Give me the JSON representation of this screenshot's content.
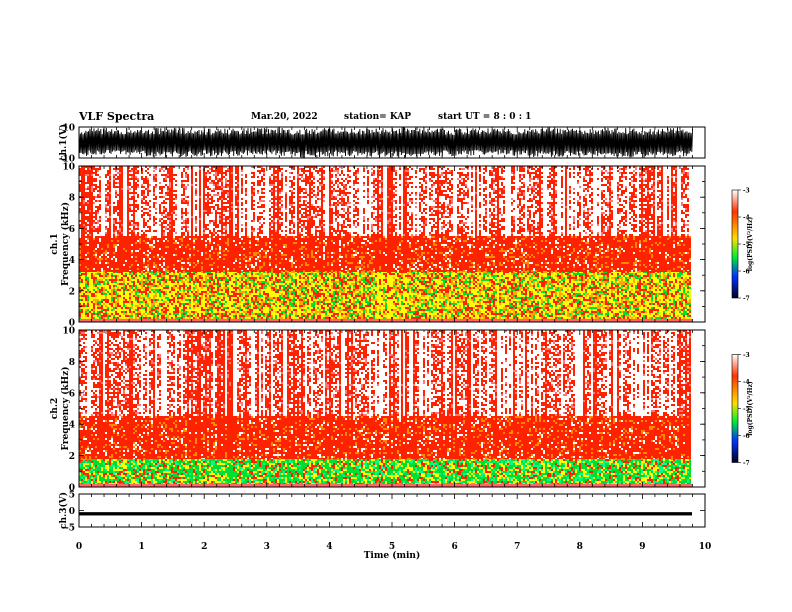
{
  "header": {
    "title": "VLF Spectra",
    "date": "Mar.20, 2022",
    "station": "station= KAP",
    "start": "start UT =  8 : 0 : 1"
  },
  "colors": {
    "spec_hi": "#ff2200",
    "spec_mid": "#ffff00",
    "spec_low": "#00dd33",
    "spec_floor": "#ffffff",
    "trace": "#000000"
  },
  "chart_data": [
    {
      "type": "line",
      "name": "ch1-waveform",
      "ylabel": "ch.1(V)",
      "ylim": [
        -10,
        10
      ],
      "yticks": [
        10,
        -10
      ],
      "xlim": [
        0,
        10
      ],
      "x": [
        0,
        0.5,
        1,
        1.5,
        2,
        2.5,
        3,
        3.5,
        4,
        4.5,
        5,
        5.5,
        6,
        6.5,
        7,
        7.5,
        8,
        8.5,
        9,
        9.5,
        9.8
      ],
      "envelope_upper": [
        9,
        10,
        9,
        10,
        9,
        9,
        10,
        9,
        10,
        9,
        10,
        10,
        9,
        10,
        9,
        10,
        9,
        10,
        9,
        10,
        9
      ],
      "envelope_lower": [
        -9,
        -8,
        -9,
        -10,
        -9,
        -9,
        -8,
        -10,
        -9,
        -9,
        -10,
        -9,
        -9,
        -8,
        -9,
        -10,
        -9,
        -9,
        -10,
        -9,
        -9
      ]
    },
    {
      "type": "heatmap",
      "name": "ch1-spectrogram",
      "ylabel": "ch.1 Frequency (kHz)",
      "ylim": [
        0,
        10
      ],
      "yticks": [
        0,
        2,
        4,
        6,
        8,
        10
      ],
      "xlim": [
        0,
        9.8
      ],
      "bands": [
        {
          "fmin": 0.2,
          "fmax": 3.3,
          "level": "mid"
        },
        {
          "fmin": 3.3,
          "fmax": 5.5,
          "level": "hi"
        },
        {
          "fmin": 5.5,
          "fmax": 10,
          "level": "mixed"
        }
      ],
      "colorbar": {
        "label": "log(PSD)(V²/Hz)",
        "range": [
          -7,
          -3
        ],
        "ticks": [
          -3,
          -4,
          -5,
          -6,
          -7
        ]
      }
    },
    {
      "type": "heatmap",
      "name": "ch2-spectrogram",
      "ylabel": "ch.2 Frequency (kHz)",
      "ylim": [
        0,
        10
      ],
      "yticks": [
        0,
        2,
        4,
        6,
        8,
        10
      ],
      "xlim": [
        0,
        9.8
      ],
      "bands": [
        {
          "fmin": 0.2,
          "fmax": 1.8,
          "level": "low"
        },
        {
          "fmin": 1.8,
          "fmax": 4.5,
          "level": "hi"
        },
        {
          "fmin": 4.5,
          "fmax": 10,
          "level": "mixed"
        }
      ],
      "colorbar": {
        "label": "log(PSD)(V²/Hz)",
        "range": [
          -7,
          -3
        ],
        "ticks": [
          -3,
          -4,
          -5,
          -6,
          -7
        ]
      }
    },
    {
      "type": "line",
      "name": "ch3-waveform",
      "ylabel": "ch.3(V)",
      "ylim": [
        -5,
        5
      ],
      "yticks": [
        5,
        0,
        -5
      ],
      "xlim": [
        0,
        10
      ],
      "x": [
        0,
        9.8
      ],
      "envelope_upper": [
        -0.5,
        -0.5
      ],
      "envelope_lower": [
        -1.5,
        -1.5
      ]
    }
  ],
  "time_axis": {
    "xlabel": "Time (min)",
    "xlim": [
      0,
      10
    ],
    "ticks": [
      "0",
      "1",
      "2",
      "3",
      "4",
      "5",
      "6",
      "7",
      "8",
      "9",
      "10"
    ]
  }
}
